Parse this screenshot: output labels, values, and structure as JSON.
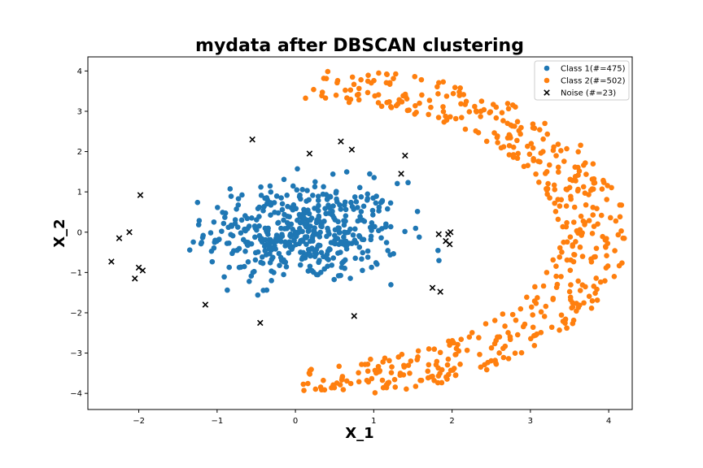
{
  "chart_data": {
    "type": "scatter",
    "title": "mydata after DBSCAN clustering",
    "xlabel": "X_1",
    "ylabel": "X_2",
    "xlim": [
      -2.65,
      4.3
    ],
    "ylim": [
      -4.4,
      4.35
    ],
    "xticks": [
      -2,
      -1,
      0,
      1,
      2,
      3,
      4
    ],
    "yticks": [
      -4,
      -3,
      -2,
      -1,
      0,
      1,
      2,
      3,
      4
    ],
    "xtick_labels": [
      "−2",
      "−1",
      "0",
      "1",
      "2",
      "3",
      "4"
    ],
    "ytick_labels": [
      "−4",
      "−3",
      "−2",
      "−1",
      "0",
      "1",
      "2",
      "3",
      "4"
    ],
    "grid": false,
    "legend_position": "top-right",
    "series": [
      {
        "name": "Class 1(#=475)",
        "marker": "circle",
        "color": "#1f77b4",
        "shape": "blob",
        "count": 475,
        "center": [
          0.1,
          0.0
        ],
        "extent_x": [
          -1.35,
          2.05
        ],
        "extent_y": [
          -1.75,
          1.9
        ]
      },
      {
        "name": "Class 2(#=502)",
        "marker": "circle",
        "color": "#ff7f0e",
        "shape": "crescent",
        "count": 502,
        "center": [
          0.1,
          0.0
        ],
        "radius_range": [
          3.25,
          4.15
        ],
        "extent_x": [
          0.0,
          4.0
        ],
        "extent_y": [
          -4.0,
          4.0
        ]
      },
      {
        "name": "Noise (#=23)",
        "marker": "x",
        "color": "#000000",
        "points": [
          [
            -2.35,
            -0.73
          ],
          [
            -2.25,
            -0.15
          ],
          [
            -2.12,
            0.0
          ],
          [
            -2.05,
            -1.15
          ],
          [
            -2.0,
            -0.88
          ],
          [
            -1.95,
            -0.95
          ],
          [
            -1.98,
            0.92
          ],
          [
            -1.15,
            -1.8
          ],
          [
            -0.55,
            2.3
          ],
          [
            -0.45,
            -2.25
          ],
          [
            0.18,
            1.95
          ],
          [
            0.58,
            2.25
          ],
          [
            0.72,
            2.05
          ],
          [
            0.75,
            -2.08
          ],
          [
            1.35,
            1.45
          ],
          [
            1.4,
            1.9
          ],
          [
            1.75,
            -1.38
          ],
          [
            1.83,
            -0.05
          ],
          [
            1.85,
            -1.48
          ],
          [
            1.92,
            -0.22
          ],
          [
            1.95,
            -0.05
          ],
          [
            1.97,
            -0.3
          ],
          [
            1.98,
            0.0
          ]
        ]
      }
    ]
  }
}
